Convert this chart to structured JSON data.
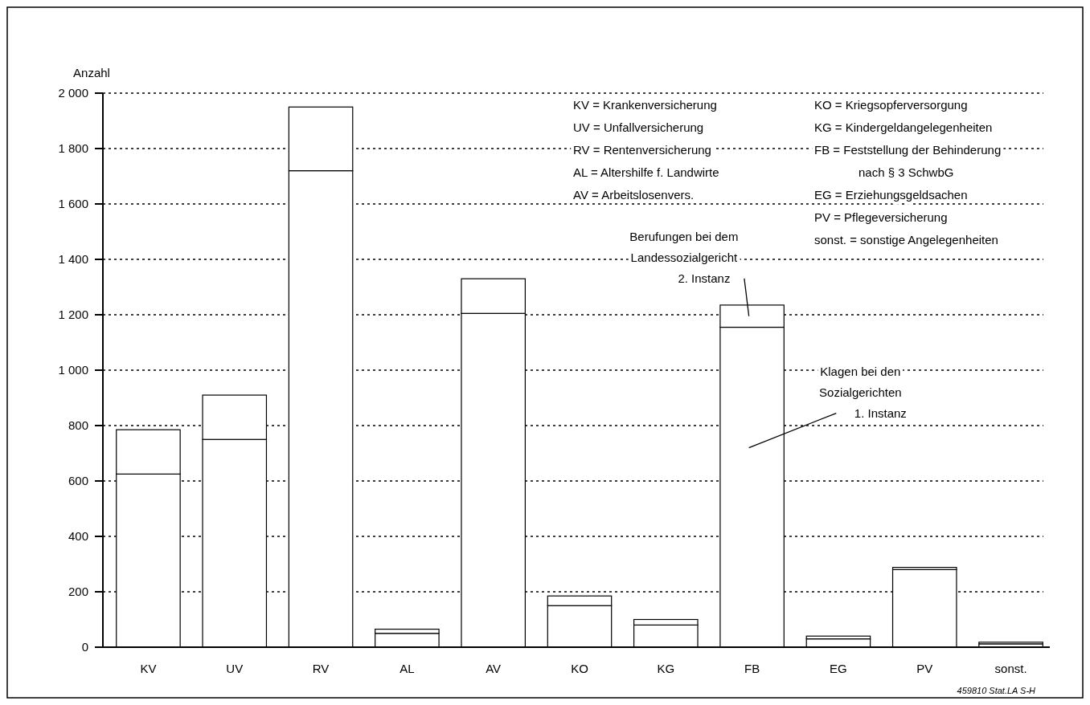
{
  "chart_data": {
    "type": "bar",
    "stacked": true,
    "ylabel": "Anzahl",
    "categories": [
      "KV",
      "UV",
      "RV",
      "AL",
      "AV",
      "KO",
      "KG",
      "FB",
      "EG",
      "PV",
      "sonst."
    ],
    "series": [
      {
        "name": "Klagen bei den Sozialgerichten 1. Instanz",
        "color": "#ffffff",
        "values": [
          625,
          750,
          1720,
          50,
          1205,
          150,
          80,
          1155,
          30,
          280,
          12
        ]
      },
      {
        "name": "Berufungen bei dem Landessozialgericht 2. Instanz",
        "color": "#ffffff",
        "values": [
          160,
          160,
          230,
          15,
          125,
          35,
          20,
          80,
          10,
          8,
          6
        ]
      }
    ],
    "ylim": [
      0,
      2000
    ],
    "yticks": [
      0,
      200,
      400,
      600,
      800,
      {
        "value": 1000,
        "label": "1 000"
      },
      {
        "value": 1200,
        "label": "1 200"
      },
      {
        "value": 1400,
        "label": "1 400"
      },
      {
        "value": 1600,
        "label": "1 600"
      },
      {
        "value": 1800,
        "label": "1 800"
      },
      {
        "value": 2000,
        "label": "2 000"
      }
    ],
    "grid": "y",
    "annotations": [
      "KV = Krankenversicherung",
      "UV = Unfallversicherung",
      "RV = Rentenversicherung",
      "AL = Altershilfe f. Landwirte",
      "AV = Arbeitslosenvers.",
      "KO = Kriegsopferversorgung",
      "KG = Kindergeldangelegenheiten",
      "FB = Feststellung der Behinderung nach § 3 SchwbG",
      "EG = Erziehungsgeldsachen",
      "PV = Pflegeversicherung",
      "sonst. = sonstige Angelegenheiten",
      "459810 Stat.LA S-H"
    ]
  }
}
